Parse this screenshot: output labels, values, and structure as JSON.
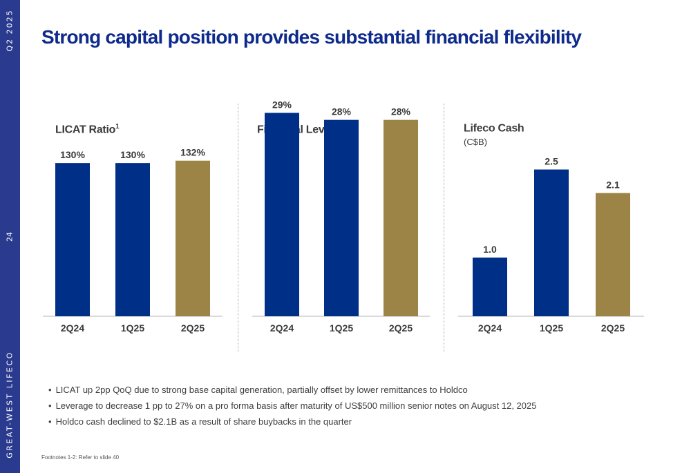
{
  "sidebar": {
    "date": "Q2 2025",
    "page_number": "24",
    "brand": "GREAT-WEST LIFECO",
    "color": "#2a3a8f"
  },
  "title": "Strong capital position provides substantial financial flexibility",
  "colors": {
    "navy": "#002f87",
    "gold": "#9b8445"
  },
  "panels": [
    {
      "title": "LICAT Ratio",
      "sup": "1",
      "subtitle": ""
    },
    {
      "title": "Financial Leverage",
      "sup": "2",
      "subtitle": ""
    },
    {
      "title": "Lifeco Cash",
      "sup": "",
      "subtitle": "(C$B)"
    }
  ],
  "chart_data": [
    {
      "type": "bar",
      "title": "LICAT Ratio",
      "categories": [
        "2Q24",
        "1Q25",
        "2Q25"
      ],
      "values": [
        130,
        130,
        132
      ],
      "labels": [
        "130%",
        "130%",
        "132%"
      ],
      "ylim": [
        0,
        150
      ],
      "bar_colors": [
        "#002f87",
        "#002f87",
        "#9b8445"
      ]
    },
    {
      "type": "bar",
      "title": "Financial Leverage",
      "categories": [
        "2Q24",
        "1Q25",
        "2Q25"
      ],
      "values": [
        29,
        28,
        28
      ],
      "labels": [
        "29%",
        "28%",
        "28%"
      ],
      "ylim": [
        0,
        32
      ],
      "bar_colors": [
        "#002f87",
        "#002f87",
        "#9b8445"
      ]
    },
    {
      "type": "bar",
      "title": "Lifeco Cash",
      "subtitle": "(C$B)",
      "categories": [
        "2Q24",
        "1Q25",
        "2Q25"
      ],
      "values": [
        1.0,
        2.5,
        2.1
      ],
      "labels": [
        "1.0",
        "2.5",
        "2.1"
      ],
      "ylim": [
        0,
        3.0
      ],
      "bar_colors": [
        "#002f87",
        "#002f87",
        "#9b8445"
      ]
    }
  ],
  "bullets": [
    "LICAT up 2pp QoQ due to strong base capital generation, partially offset by lower remittances to Holdco",
    "Leverage to decrease 1 pp to 27% on a pro forma basis after maturity of US$500 million senior notes on August 12, 2025",
    "Holdco cash declined to $2.1B as a result of share buybacks in the quarter"
  ],
  "footnote": "Footnotes 1-2: Refer to slide 40"
}
